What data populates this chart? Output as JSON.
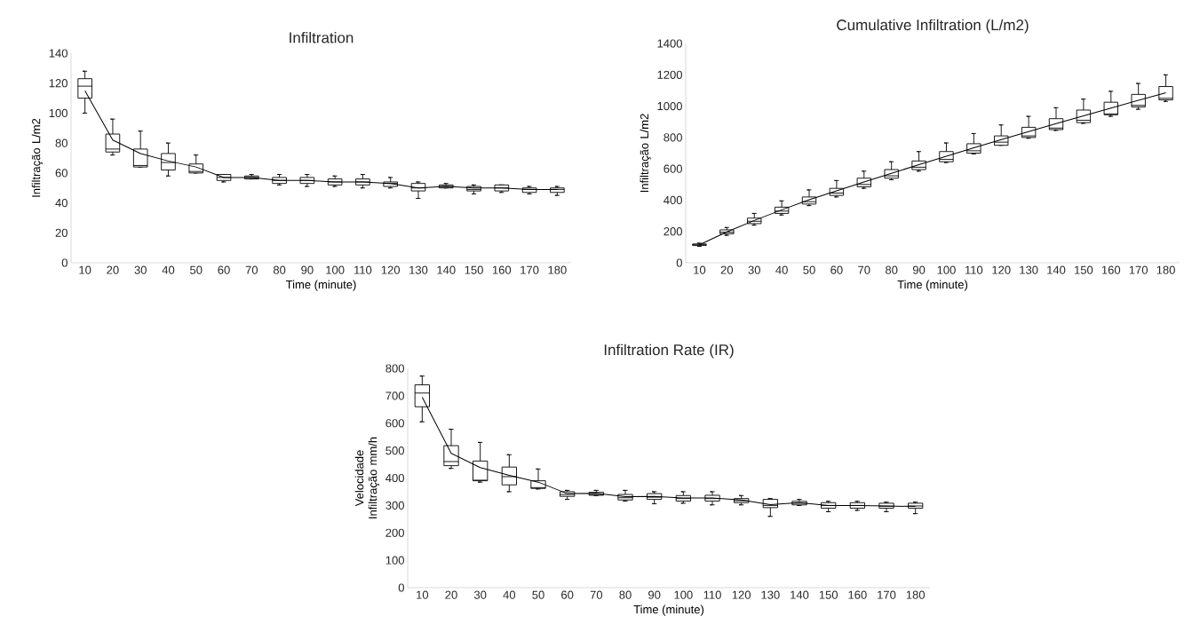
{
  "chart_data": [
    {
      "type": "box",
      "title": "Infiltration",
      "xlabel": "Time (minute)",
      "ylabel": "Infiltração L/m2",
      "categories": [
        "10",
        "20",
        "30",
        "40",
        "50",
        "60",
        "70",
        "80",
        "90",
        "100",
        "110",
        "120",
        "130",
        "140",
        "150",
        "160",
        "170",
        "180"
      ],
      "ylim": [
        0,
        140
      ],
      "yticks": [
        0,
        20,
        40,
        60,
        80,
        100,
        120,
        140
      ],
      "grid": false,
      "color": "#000000",
      "boxes": [
        {
          "low": 100,
          "q1": 110,
          "median": 118,
          "q3": 123,
          "high": 128
        },
        {
          "low": 72,
          "q1": 74,
          "median": 76,
          "q3": 86,
          "high": 96
        },
        {
          "low": 64,
          "q1": 64,
          "median": 65,
          "q3": 76,
          "high": 88
        },
        {
          "low": 58,
          "q1": 62,
          "median": 67,
          "q3": 73,
          "high": 80
        },
        {
          "low": 60,
          "q1": 60,
          "median": 61,
          "q3": 66,
          "high": 72
        },
        {
          "low": 54,
          "q1": 55,
          "median": 57,
          "q3": 59,
          "high": 59
        },
        {
          "low": 56,
          "q1": 56,
          "median": 57,
          "q3": 58,
          "high": 59
        },
        {
          "low": 52,
          "q1": 53,
          "median": 55,
          "q3": 57,
          "high": 59
        },
        {
          "low": 51,
          "q1": 53,
          "median": 55,
          "q3": 57,
          "high": 59
        },
        {
          "low": 51,
          "q1": 52,
          "median": 54,
          "q3": 56,
          "high": 58
        },
        {
          "low": 50,
          "q1": 52,
          "median": 54,
          "q3": 56,
          "high": 59
        },
        {
          "low": 50,
          "q1": 51,
          "median": 53,
          "q3": 54,
          "high": 57
        },
        {
          "low": 43,
          "q1": 48,
          "median": 50,
          "q3": 53,
          "high": 54
        },
        {
          "low": 50,
          "q1": 50,
          "median": 51,
          "q3": 52,
          "high": 53
        },
        {
          "low": 46,
          "q1": 48,
          "median": 49,
          "q3": 51,
          "high": 52
        },
        {
          "low": 47,
          "q1": 48,
          "median": 50,
          "q3": 52,
          "high": 52
        },
        {
          "low": 46,
          "q1": 47,
          "median": 49,
          "q3": 50,
          "high": 51
        },
        {
          "low": 45,
          "q1": 47,
          "median": 49,
          "q3": 50,
          "high": 51
        }
      ],
      "series": [
        {
          "type": "line",
          "color": "#000000",
          "values": [
            115,
            82,
            73,
            68,
            64,
            57,
            57,
            55,
            55,
            54,
            54,
            53,
            50,
            51,
            50,
            50,
            49,
            49
          ]
        }
      ]
    },
    {
      "type": "box",
      "title": "Cumulative Infiltration (L/m2)",
      "xlabel": "Time (minute)",
      "ylabel": "Infiltração L/m2",
      "categories": [
        "10",
        "20",
        "30",
        "40",
        "50",
        "60",
        "70",
        "80",
        "90",
        "100",
        "110",
        "120",
        "130",
        "140",
        "150",
        "160",
        "170",
        "180"
      ],
      "ylim": [
        0,
        1400
      ],
      "yticks": [
        0,
        200,
        400,
        600,
        800,
        1000,
        1200,
        1400
      ],
      "grid": false,
      "color": "#000000",
      "boxes": [
        {
          "low": 105,
          "q1": 110,
          "median": 115,
          "q3": 120,
          "high": 125
        },
        {
          "low": 175,
          "q1": 185,
          "median": 195,
          "q3": 210,
          "high": 225
        },
        {
          "low": 240,
          "q1": 250,
          "median": 265,
          "q3": 285,
          "high": 315
        },
        {
          "low": 305,
          "q1": 315,
          "median": 330,
          "q3": 355,
          "high": 395
        },
        {
          "low": 365,
          "q1": 375,
          "median": 390,
          "q3": 420,
          "high": 465
        },
        {
          "low": 420,
          "q1": 430,
          "median": 445,
          "q3": 475,
          "high": 525
        },
        {
          "low": 475,
          "q1": 485,
          "median": 500,
          "q3": 540,
          "high": 585
        },
        {
          "low": 530,
          "q1": 540,
          "median": 555,
          "q3": 595,
          "high": 645
        },
        {
          "low": 585,
          "q1": 595,
          "median": 610,
          "q3": 650,
          "high": 710
        },
        {
          "low": 640,
          "q1": 645,
          "median": 660,
          "q3": 710,
          "high": 765
        },
        {
          "low": 695,
          "q1": 700,
          "median": 715,
          "q3": 760,
          "high": 825
        },
        {
          "low": 750,
          "q1": 750,
          "median": 770,
          "q3": 810,
          "high": 880
        },
        {
          "low": 795,
          "q1": 800,
          "median": 810,
          "q3": 865,
          "high": 935
        },
        {
          "low": 845,
          "q1": 850,
          "median": 860,
          "q3": 920,
          "high": 990
        },
        {
          "low": 890,
          "q1": 895,
          "median": 910,
          "q3": 975,
          "high": 1045
        },
        {
          "low": 935,
          "q1": 945,
          "median": 950,
          "q3": 1025,
          "high": 1095
        },
        {
          "low": 980,
          "q1": 995,
          "median": 1005,
          "q3": 1075,
          "high": 1145
        },
        {
          "low": 1030,
          "q1": 1040,
          "median": 1050,
          "q3": 1125,
          "high": 1200
        }
      ],
      "series": [
        {
          "type": "line",
          "color": "#000000",
          "values": [
            115,
            197,
            270,
            338,
            402,
            459,
            516,
            571,
            626,
            680,
            734,
            787,
            837,
            888,
            938,
            988,
            1037,
            1086
          ]
        }
      ]
    },
    {
      "type": "box",
      "title": "Infiltration Rate (IR)",
      "xlabel": "Time (minute)",
      "ylabel": "Velocidade Infiltração mm/h",
      "categories": [
        "10",
        "20",
        "30",
        "40",
        "50",
        "60",
        "70",
        "80",
        "90",
        "100",
        "110",
        "120",
        "130",
        "140",
        "150",
        "160",
        "170",
        "180"
      ],
      "ylim": [
        0,
        800
      ],
      "yticks": [
        0,
        100,
        200,
        300,
        400,
        500,
        600,
        700,
        800
      ],
      "grid": false,
      "color": "#000000",
      "boxes": [
        {
          "low": 605,
          "q1": 660,
          "median": 710,
          "q3": 740,
          "high": 772
        },
        {
          "low": 435,
          "q1": 445,
          "median": 460,
          "q3": 518,
          "high": 578
        },
        {
          "low": 385,
          "q1": 390,
          "median": 392,
          "q3": 462,
          "high": 530
        },
        {
          "low": 350,
          "q1": 375,
          "median": 405,
          "q3": 440,
          "high": 485
        },
        {
          "low": 360,
          "q1": 362,
          "median": 365,
          "q3": 390,
          "high": 433
        },
        {
          "low": 322,
          "q1": 333,
          "median": 340,
          "q3": 350,
          "high": 355
        },
        {
          "low": 336,
          "q1": 337,
          "median": 340,
          "q3": 348,
          "high": 355
        },
        {
          "low": 316,
          "q1": 320,
          "median": 328,
          "q3": 340,
          "high": 355
        },
        {
          "low": 306,
          "q1": 322,
          "median": 330,
          "q3": 343,
          "high": 350
        },
        {
          "low": 308,
          "q1": 316,
          "median": 325,
          "q3": 336,
          "high": 350
        },
        {
          "low": 302,
          "q1": 316,
          "median": 325,
          "q3": 337,
          "high": 350
        },
        {
          "low": 302,
          "q1": 310,
          "median": 317,
          "q3": 325,
          "high": 336
        },
        {
          "low": 260,
          "q1": 292,
          "median": 300,
          "q3": 322,
          "high": 325
        },
        {
          "low": 300,
          "q1": 302,
          "median": 308,
          "q3": 315,
          "high": 322
        },
        {
          "low": 277,
          "q1": 290,
          "median": 300,
          "q3": 310,
          "high": 315
        },
        {
          "low": 282,
          "q1": 290,
          "median": 300,
          "q3": 310,
          "high": 315
        },
        {
          "low": 277,
          "q1": 290,
          "median": 297,
          "q3": 308,
          "high": 312
        },
        {
          "low": 270,
          "q1": 290,
          "median": 298,
          "q3": 308,
          "high": 312
        }
      ],
      "series": [
        {
          "type": "line",
          "color": "#000000",
          "values": [
            695,
            490,
            438,
            410,
            385,
            343,
            344,
            332,
            333,
            327,
            327,
            320,
            303,
            310,
            300,
            300,
            298,
            296
          ]
        }
      ]
    }
  ]
}
